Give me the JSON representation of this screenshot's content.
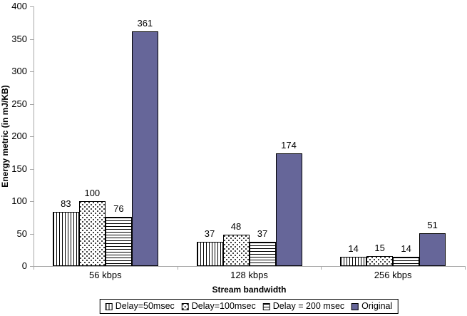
{
  "chart_data": {
    "type": "bar",
    "title": "",
    "xlabel": "Stream bandwidth",
    "ylabel": "Energy metric (in mJ/KB)",
    "categories": [
      "56 kbps",
      "128 kbps",
      "256 kbps"
    ],
    "series": [
      {
        "name": "Delay=50msec",
        "pattern": "vertical-lines",
        "values": [
          83,
          37,
          14
        ]
      },
      {
        "name": "Delay=100msec",
        "pattern": "dots",
        "values": [
          100,
          48,
          15
        ]
      },
      {
        "name": "Delay = 200 msec",
        "pattern": "horizontal-lines",
        "values": [
          76,
          37,
          14
        ]
      },
      {
        "name": "Original",
        "pattern": "solid",
        "values": [
          361,
          174,
          51
        ]
      }
    ],
    "ylim": [
      0,
      400
    ],
    "yticks": [
      0,
      50,
      100,
      150,
      200,
      250,
      300,
      350,
      400
    ],
    "value_labels_shown": true,
    "grid": false,
    "legend_position": "bottom-center",
    "colors": {
      "solid_fill": "#666699",
      "pattern_foreground": "#000000",
      "pattern_background": "#ffffff",
      "bar_border": "#000000",
      "axis_line": "#a8a8a8",
      "text": "#000000",
      "background": "#ffffff"
    }
  }
}
